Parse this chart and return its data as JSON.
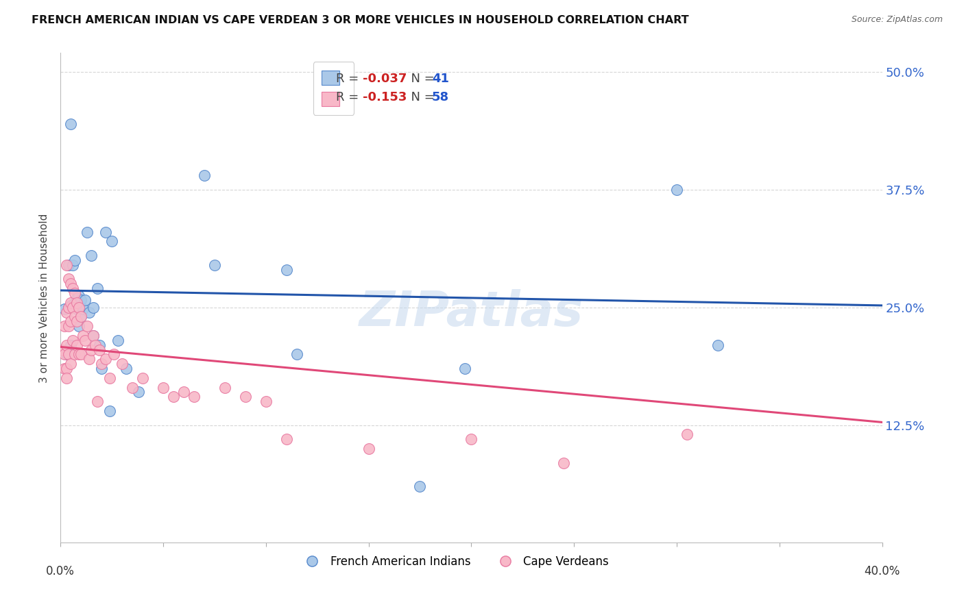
{
  "title": "FRENCH AMERICAN INDIAN VS CAPE VERDEAN 3 OR MORE VEHICLES IN HOUSEHOLD CORRELATION CHART",
  "source": "Source: ZipAtlas.com",
  "ylabel": "3 or more Vehicles in Household",
  "ytick_labels": [
    "50.0%",
    "37.5%",
    "25.0%",
    "12.5%"
  ],
  "ytick_values": [
    0.5,
    0.375,
    0.25,
    0.125
  ],
  "xlim": [
    0.0,
    0.4
  ],
  "ylim": [
    0.0,
    0.52
  ],
  "legend_blue_r": "-0.037",
  "legend_blue_n": "41",
  "legend_pink_r": "-0.153",
  "legend_pink_n": "58",
  "legend_labels": [
    "French American Indians",
    "Cape Verdeans"
  ],
  "blue_color": "#aac8e8",
  "pink_color": "#f8b8c8",
  "blue_line_color": "#2255aa",
  "pink_line_color": "#e04878",
  "blue_edge_color": "#5588cc",
  "pink_edge_color": "#e878a0",
  "watermark": "ZIPatlas",
  "background_color": "#ffffff",
  "grid_color": "#cccccc",
  "blue_x": [
    0.002,
    0.003,
    0.004,
    0.004,
    0.005,
    0.005,
    0.005,
    0.006,
    0.006,
    0.007,
    0.007,
    0.008,
    0.008,
    0.009,
    0.009,
    0.01,
    0.01,
    0.011,
    0.012,
    0.013,
    0.014,
    0.015,
    0.016,
    0.016,
    0.018,
    0.019,
    0.02,
    0.022,
    0.024,
    0.025,
    0.028,
    0.032,
    0.038,
    0.07,
    0.075,
    0.11,
    0.115,
    0.175,
    0.197,
    0.3,
    0.32
  ],
  "blue_y": [
    0.248,
    0.2,
    0.295,
    0.25,
    0.445,
    0.252,
    0.21,
    0.295,
    0.25,
    0.3,
    0.255,
    0.26,
    0.248,
    0.262,
    0.23,
    0.258,
    0.24,
    0.248,
    0.258,
    0.33,
    0.245,
    0.305,
    0.25,
    0.22,
    0.27,
    0.21,
    0.185,
    0.33,
    0.14,
    0.32,
    0.215,
    0.185,
    0.16,
    0.39,
    0.295,
    0.29,
    0.2,
    0.06,
    0.185,
    0.375,
    0.21
  ],
  "pink_x": [
    0.001,
    0.002,
    0.002,
    0.002,
    0.003,
    0.003,
    0.003,
    0.003,
    0.003,
    0.004,
    0.004,
    0.004,
    0.004,
    0.005,
    0.005,
    0.005,
    0.005,
    0.006,
    0.006,
    0.006,
    0.007,
    0.007,
    0.007,
    0.008,
    0.008,
    0.008,
    0.009,
    0.009,
    0.01,
    0.01,
    0.011,
    0.012,
    0.013,
    0.014,
    0.015,
    0.016,
    0.017,
    0.018,
    0.019,
    0.02,
    0.022,
    0.024,
    0.026,
    0.03,
    0.035,
    0.04,
    0.05,
    0.055,
    0.06,
    0.065,
    0.08,
    0.09,
    0.1,
    0.11,
    0.15,
    0.2,
    0.245,
    0.305
  ],
  "pink_y": [
    0.205,
    0.23,
    0.2,
    0.185,
    0.295,
    0.245,
    0.21,
    0.185,
    0.175,
    0.28,
    0.25,
    0.23,
    0.2,
    0.275,
    0.255,
    0.235,
    0.19,
    0.27,
    0.25,
    0.215,
    0.265,
    0.24,
    0.2,
    0.255,
    0.235,
    0.21,
    0.25,
    0.2,
    0.24,
    0.2,
    0.22,
    0.215,
    0.23,
    0.195,
    0.205,
    0.22,
    0.21,
    0.15,
    0.205,
    0.19,
    0.195,
    0.175,
    0.2,
    0.19,
    0.165,
    0.175,
    0.165,
    0.155,
    0.16,
    0.155,
    0.165,
    0.155,
    0.15,
    0.11,
    0.1,
    0.11,
    0.085,
    0.115
  ]
}
